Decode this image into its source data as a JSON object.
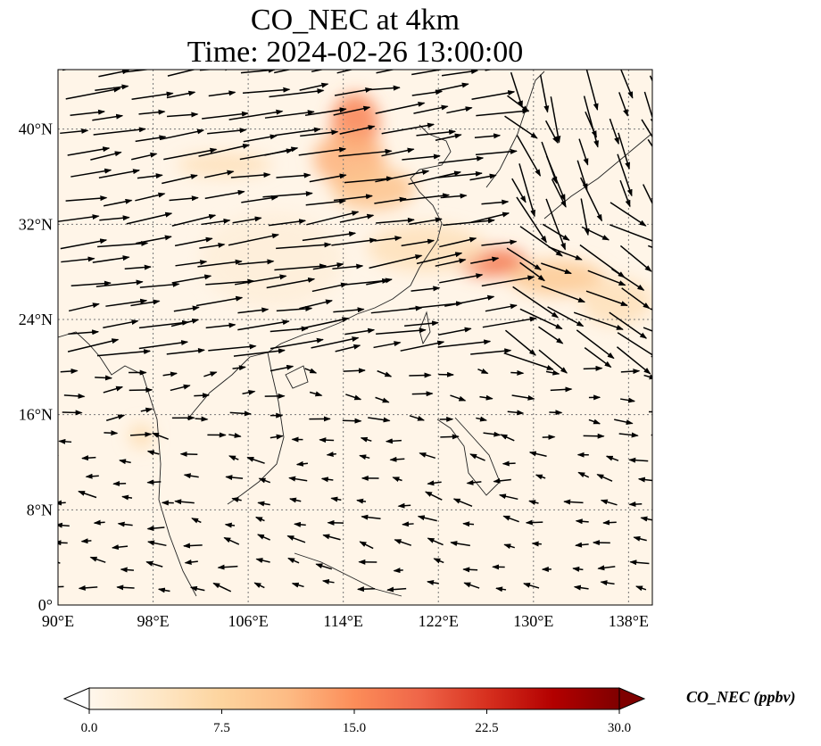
{
  "title": {
    "line1": "CO_NEC at 4km",
    "line2": "Time: 2024-02-26 13:00:00"
  },
  "map": {
    "extent": {
      "lon": [
        90,
        140
      ],
      "lat": [
        0,
        45
      ]
    },
    "lon_ticks": [
      {
        "value": 90,
        "label": "90°E"
      },
      {
        "value": 98,
        "label": "98°E"
      },
      {
        "value": 106,
        "label": "106°E"
      },
      {
        "value": 114,
        "label": "114°E"
      },
      {
        "value": 122,
        "label": "122°E"
      },
      {
        "value": 130,
        "label": "130°E"
      },
      {
        "value": 138,
        "label": "138°E"
      }
    ],
    "lat_ticks": [
      {
        "value": 0,
        "label": "0°"
      },
      {
        "value": 8,
        "label": "8°N"
      },
      {
        "value": 16,
        "label": "16°N"
      },
      {
        "value": 24,
        "label": "24°N"
      },
      {
        "value": 32,
        "label": "32°N"
      },
      {
        "value": 40,
        "label": "40°N"
      }
    ],
    "gridlines": true,
    "plumes": [
      {
        "lon": 115.0,
        "lat": 40.5,
        "rlon": 2.0,
        "rlat": 2.5,
        "v": 16
      },
      {
        "lon": 114.5,
        "lat": 37.5,
        "rlon": 3.0,
        "rlat": 2.2,
        "v": 12
      },
      {
        "lon": 116.5,
        "lat": 35.0,
        "rlon": 3.5,
        "rlat": 1.8,
        "v": 10
      },
      {
        "lon": 126.5,
        "lat": 28.8,
        "rlon": 3.0,
        "rlat": 1.2,
        "v": 17
      },
      {
        "lon": 132.0,
        "lat": 27.5,
        "rlon": 4.0,
        "rlat": 1.5,
        "v": 9
      },
      {
        "lon": 121.0,
        "lat": 30.0,
        "rlon": 5.0,
        "rlat": 2.0,
        "v": 5
      },
      {
        "lon": 137.0,
        "lat": 25.5,
        "rlon": 3.0,
        "rlat": 2.0,
        "v": 5
      },
      {
        "lon": 104.0,
        "lat": 37.0,
        "rlon": 4.0,
        "rlat": 1.0,
        "v": 5
      },
      {
        "lon": 97.0,
        "lat": 14.2,
        "rlon": 1.0,
        "rlat": 1.0,
        "v": 6
      },
      {
        "lon": 108.0,
        "lat": 29.0,
        "rlon": 6.0,
        "rlat": 4.0,
        "v": 2
      }
    ],
    "wind_field": "westerlies north of 20°N, easterly/northeasterly flow in the south"
  },
  "colorbar": {
    "label": "CO_NEC (ppbv)",
    "min": 0,
    "max": 30,
    "ticks": [
      "0.0",
      "7.5",
      "15.0",
      "22.5",
      "30.0"
    ],
    "colormap": "OrRd",
    "colors": [
      "#fff7ec",
      "#fee8c8",
      "#fdd49e",
      "#fdbb84",
      "#fc8d59",
      "#ef6548",
      "#d7301f",
      "#b30000",
      "#7f0000"
    ]
  }
}
